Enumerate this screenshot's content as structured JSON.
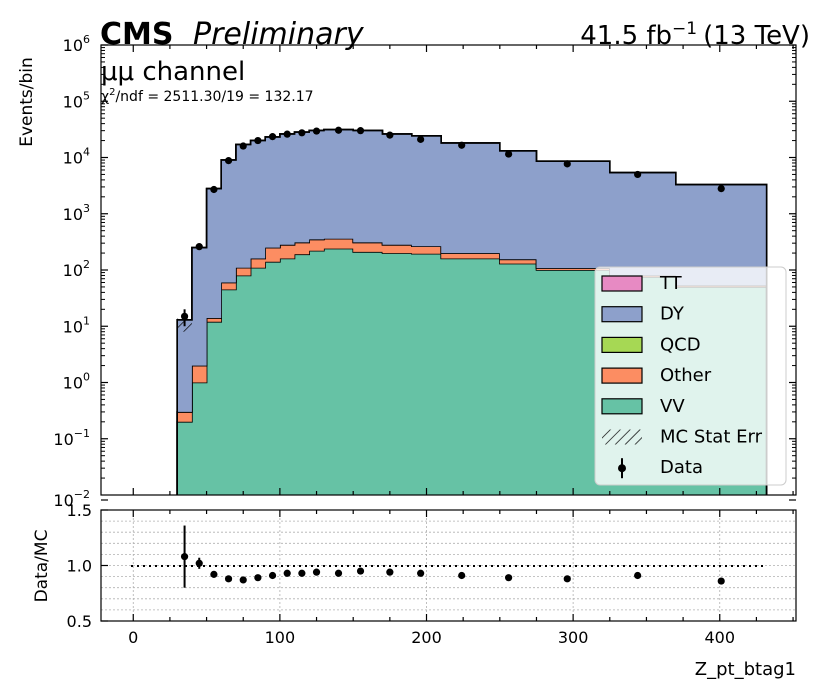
{
  "header": {
    "cms": "CMS",
    "preliminary": "Preliminary",
    "lumi_value": "41.5 fb",
    "lumi_exp": "−1",
    "energy": "(13 TeV)",
    "channel": "μμ channel",
    "chi2_lead": "χ",
    "chi2_sup": "2",
    "chi2_rest": "/ndf = 2511.30/19 = 132.17"
  },
  "colors": {
    "TT": "#e78ac3",
    "DY": "#8da0cb",
    "QCD": "#a6d854",
    "Other": "#fc8d62",
    "VV": "#66c2a5"
  },
  "chart_data": [
    {
      "type": "bar",
      "subtype": "stacked-histogram-log",
      "ylabel": "Events/bin",
      "yscale": "log",
      "ylim": [
        0.01,
        1000000
      ],
      "xlim": [
        -22,
        452
      ],
      "ytick_labels": [
        {
          "base": "10",
          "exp": "−2",
          "value": 0.01
        },
        {
          "base": "10",
          "exp": "−1",
          "value": 0.1
        },
        {
          "base": "10",
          "exp": "0",
          "value": 1
        },
        {
          "base": "10",
          "exp": "1",
          "value": 10
        },
        {
          "base": "10",
          "exp": "2",
          "value": 100
        },
        {
          "base": "10",
          "exp": "3",
          "value": 1000
        },
        {
          "base": "10",
          "exp": "4",
          "value": 10000
        },
        {
          "base": "10",
          "exp": "5",
          "value": 100000
        },
        {
          "base": "10",
          "exp": "6",
          "value": 1000000
        }
      ],
      "bin_edges": [
        30,
        40,
        50,
        60,
        70,
        80,
        90,
        100,
        110,
        120,
        130,
        150,
        170,
        190,
        210,
        250,
        275,
        325,
        370,
        432
      ],
      "series": [
        {
          "name": "VV",
          "values": [
            0.2,
            1,
            12,
            45,
            80,
            110,
            140,
            160,
            190,
            220,
            240,
            210,
            200,
            195,
            160,
            130,
            100,
            75,
            50
          ]
        },
        {
          "name": "Other",
          "values": [
            0.1,
            1,
            2,
            15,
            30,
            50,
            110,
            120,
            120,
            130,
            120,
            100,
            80,
            70,
            40,
            25,
            8,
            5,
            3
          ]
        },
        {
          "name": "QCD",
          "values": [
            0,
            0,
            0,
            0,
            0,
            0,
            0,
            0,
            0,
            0,
            0,
            0,
            0,
            0,
            0,
            0,
            0,
            0,
            0
          ]
        },
        {
          "name": "DY",
          "values": [
            12.7,
            248,
            2790,
            9000,
            17000,
            20000,
            23000,
            26000,
            28000,
            30000,
            31000,
            30000,
            26000,
            24000,
            18000,
            13000,
            8500,
            5300,
            3250
          ]
        },
        {
          "name": "TT",
          "values": [
            0,
            0,
            0,
            0,
            0,
            0,
            0,
            0,
            0,
            0,
            0,
            0,
            0,
            0,
            0,
            0,
            0,
            0,
            0
          ]
        }
      ],
      "data_points": {
        "name": "Data",
        "x": [
          35,
          45,
          55,
          65,
          75,
          85,
          95,
          105,
          115,
          125,
          140,
          155,
          175,
          196,
          224,
          256,
          296,
          344,
          401
        ],
        "y": [
          15,
          260,
          2700,
          8800,
          16000,
          20000,
          23500,
          26000,
          27500,
          29500,
          30500,
          30000,
          25000,
          21000,
          16500,
          11500,
          7700,
          5000,
          2800
        ],
        "yerr_low": [
          5,
          16,
          50,
          90,
          120,
          140,
          150,
          160,
          160,
          170,
          170,
          170,
          160,
          140,
          130,
          100,
          90,
          70,
          50
        ],
        "yerr_high": [
          5,
          16,
          50,
          90,
          120,
          140,
          150,
          160,
          160,
          170,
          170,
          170,
          160,
          140,
          130,
          100,
          90,
          70,
          50
        ]
      },
      "legend": {
        "position": "lower-right",
        "entries": [
          "TT",
          "DY",
          "QCD",
          "Other",
          "VV",
          "MC Stat Err",
          "Data"
        ]
      }
    },
    {
      "type": "scatter",
      "subtype": "ratio",
      "xlabel": "Z_pt_btag1",
      "ylabel": "Data/MC",
      "ylim": [
        0.5,
        1.5
      ],
      "xlim": [
        -22,
        452
      ],
      "xticks": [
        0,
        100,
        200,
        300,
        400
      ],
      "xtick_labels": [
        "0",
        "100",
        "200",
        "300",
        "400"
      ],
      "yticks": [
        0.5,
        1.0,
        1.5
      ],
      "ytick_labels": [
        "0.5",
        "1.0",
        "1.5"
      ],
      "reference_line": 1.0,
      "grid": true,
      "x": [
        35,
        45,
        55,
        65,
        75,
        85,
        95,
        105,
        115,
        125,
        140,
        155,
        175,
        196,
        224,
        256,
        296,
        344,
        401
      ],
      "y": [
        1.08,
        1.02,
        0.92,
        0.88,
        0.87,
        0.89,
        0.91,
        0.93,
        0.93,
        0.94,
        0.93,
        0.95,
        0.94,
        0.93,
        0.91,
        0.89,
        0.88,
        0.91,
        0.86
      ],
      "yerr": [
        0.28,
        0.05,
        0.02,
        0.01,
        0.01,
        0.01,
        0.01,
        0.01,
        0.01,
        0.01,
        0.01,
        0.01,
        0.01,
        0.01,
        0.01,
        0.01,
        0.01,
        0.01,
        0.01
      ]
    }
  ]
}
